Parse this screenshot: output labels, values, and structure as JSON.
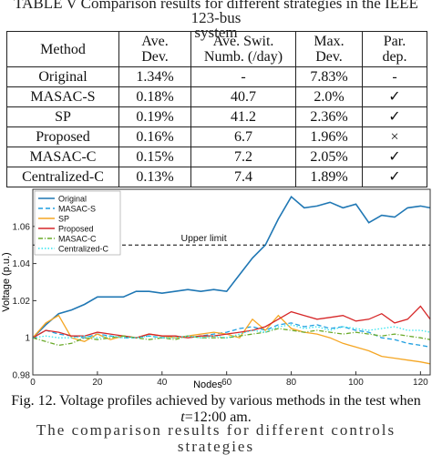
{
  "table": {
    "caption_line1": "TABLE V Comparison results for different strategies in the IEEE 123-bus",
    "caption_line2": "system",
    "headers": [
      "Method",
      "Ave. Dev.",
      "Ave. Swit. Numb. (/day)",
      "Max. Dev.",
      "Par. dep."
    ],
    "rows": [
      [
        "Original",
        "1.34%",
        "-",
        "7.83%",
        "-"
      ],
      [
        "MASAC-S",
        "0.18%",
        "40.7",
        "2.0%",
        "✓"
      ],
      [
        "SP",
        "0.19%",
        "41.2",
        "2.36%",
        "✓"
      ],
      [
        "Proposed",
        "0.16%",
        "6.7",
        "1.96%",
        "×"
      ],
      [
        "MASAC-C",
        "0.15%",
        "7.2",
        "2.05%",
        "✓"
      ],
      [
        "Centralized-C",
        "0.13%",
        "7.4",
        "1.89%",
        "✓"
      ]
    ]
  },
  "chart_data": {
    "type": "line",
    "title": "",
    "xlabel": "Nodes",
    "ylabel": "Voltage (p.u.)",
    "xlim": [
      0,
      123
    ],
    "ylim": [
      0.98,
      1.08
    ],
    "xticks": [
      "0",
      "20",
      "40",
      "60",
      "80",
      "100",
      "120"
    ],
    "yticks": [
      "0.98",
      "1",
      "1.02",
      "1.04",
      "1.06"
    ],
    "grid": false,
    "legend_position": "top-left",
    "colors": {
      "Original": "#1f77b4",
      "MASAC-S": "#1f9fe0",
      "SP": "#f5a623",
      "Proposed": "#d62728",
      "MASAC-C": "#6aaa2a",
      "Centralized-C": "#33e5f0"
    },
    "reference_line": {
      "label": "Upper limit",
      "y": 1.05
    },
    "x": [
      0,
      4,
      8,
      12,
      16,
      20,
      24,
      28,
      32,
      36,
      40,
      44,
      48,
      52,
      56,
      60,
      64,
      68,
      72,
      76,
      80,
      84,
      88,
      92,
      96,
      100,
      104,
      108,
      112,
      116,
      120,
      123
    ],
    "series": [
      {
        "name": "Original",
        "style": "solid",
        "values": [
          1.0,
          1.007,
          1.013,
          1.015,
          1.018,
          1.022,
          1.022,
          1.022,
          1.025,
          1.025,
          1.024,
          1.025,
          1.026,
          1.025,
          1.026,
          1.025,
          1.034,
          1.043,
          1.05,
          1.064,
          1.076,
          1.07,
          1.071,
          1.073,
          1.07,
          1.072,
          1.062,
          1.066,
          1.065,
          1.07,
          1.071,
          1.07
        ]
      },
      {
        "name": "MASAC-S",
        "style": "dashed",
        "values": [
          1.0,
          1.004,
          1.002,
          1.001,
          1.0,
          1.002,
          1.001,
          1.0,
          1.0,
          1.001,
          1.0,
          1.001,
          1.0,
          1.001,
          1.002,
          1.003,
          1.005,
          1.006,
          1.004,
          1.007,
          1.008,
          1.006,
          1.007,
          1.005,
          1.006,
          1.004,
          1.003,
          1.0,
          0.999,
          0.997,
          0.996,
          0.995
        ]
      },
      {
        "name": "SP",
        "style": "solid",
        "values": [
          1.0,
          1.008,
          1.012,
          1.0,
          0.998,
          1.002,
          0.999,
          1.001,
          1.0,
          1.002,
          1.001,
          1.0,
          1.001,
          1.002,
          1.003,
          1.002,
          1.0,
          1.01,
          1.004,
          1.012,
          1.005,
          1.003,
          1.002,
          1.0,
          0.997,
          0.995,
          0.993,
          0.99,
          0.989,
          0.988,
          0.987,
          0.986
        ]
      },
      {
        "name": "Proposed",
        "style": "solid",
        "values": [
          1.0,
          1.004,
          1.003,
          1.001,
          1.001,
          1.003,
          1.002,
          1.001,
          1.0,
          1.002,
          1.001,
          1.001,
          1.0,
          1.001,
          1.001,
          1.002,
          1.003,
          1.004,
          1.006,
          1.01,
          1.014,
          1.012,
          1.01,
          1.011,
          1.012,
          1.009,
          1.01,
          1.013,
          1.008,
          1.01,
          1.017,
          1.01
        ]
      },
      {
        "name": "MASAC-C",
        "style": "dashdot",
        "values": [
          1.0,
          0.998,
          0.996,
          0.997,
          1.0,
          0.999,
          1.0,
          1.001,
          1.0,
          0.999,
          1.0,
          0.999,
          1.001,
          1.0,
          1.0,
          1.0,
          1.001,
          1.002,
          1.003,
          1.005,
          1.004,
          1.003,
          1.004,
          1.003,
          1.002,
          1.003,
          1.002,
          1.001,
          1.002,
          1.001,
          1.0,
          0.999
        ]
      },
      {
        "name": "Centralized-C",
        "style": "dotted",
        "values": [
          1.0,
          1.001,
          1.0,
          1.0,
          1.001,
          1.0,
          1.001,
          1.0,
          1.0,
          1.001,
          1.0,
          1.0,
          1.001,
          1.0,
          1.001,
          1.0,
          1.002,
          1.004,
          1.003,
          1.006,
          1.007,
          1.005,
          1.006,
          1.004,
          1.006,
          1.005,
          1.004,
          1.005,
          1.006,
          1.004,
          1.004,
          1.003
        ]
      }
    ]
  },
  "figure": {
    "caption_line1": "Fig. 12. Voltage profiles achieved by various methods in the test when",
    "caption_t": "t",
    "caption_rest": "=12:00 am."
  },
  "footer": {
    "cut_text": "The comparison results for different controls strategies"
  }
}
